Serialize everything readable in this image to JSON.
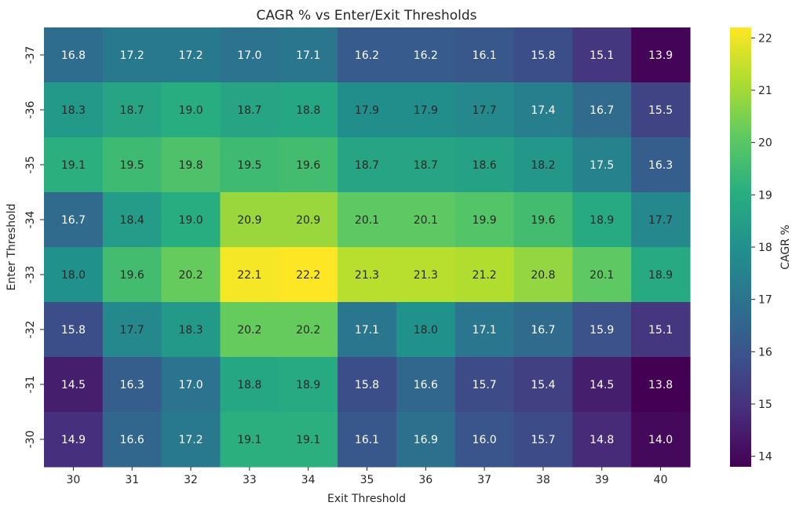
{
  "chart_data": {
    "type": "heatmap",
    "title": "CAGR % vs Enter/Exit Thresholds",
    "xlabel": "Exit Threshold",
    "ylabel": "Enter Threshold",
    "x_labels": [
      "30",
      "31",
      "32",
      "33",
      "34",
      "35",
      "36",
      "37",
      "38",
      "39",
      "40"
    ],
    "y_labels": [
      "-37",
      "-36",
      "-35",
      "-34",
      "-33",
      "-32",
      "-31",
      "-30"
    ],
    "values": [
      [
        16.8,
        17.2,
        17.2,
        17.0,
        17.1,
        16.2,
        16.2,
        16.1,
        15.8,
        15.1,
        13.9
      ],
      [
        18.3,
        18.7,
        19.0,
        18.7,
        18.8,
        17.9,
        17.9,
        17.7,
        17.4,
        16.7,
        15.5
      ],
      [
        19.1,
        19.5,
        19.8,
        19.5,
        19.6,
        18.7,
        18.7,
        18.6,
        18.2,
        17.5,
        16.3
      ],
      [
        16.7,
        18.4,
        19.0,
        20.9,
        20.9,
        20.1,
        20.1,
        19.9,
        19.6,
        18.9,
        17.7
      ],
      [
        18.0,
        19.6,
        20.2,
        22.1,
        22.2,
        21.3,
        21.3,
        21.2,
        20.8,
        20.1,
        18.9
      ],
      [
        15.8,
        17.7,
        18.3,
        20.2,
        20.2,
        17.1,
        18.0,
        17.1,
        16.7,
        15.9,
        15.1
      ],
      [
        14.5,
        16.3,
        17.0,
        18.8,
        18.9,
        15.8,
        16.6,
        15.7,
        15.4,
        14.5,
        13.8
      ],
      [
        14.9,
        16.6,
        17.2,
        19.1,
        19.1,
        16.1,
        16.9,
        16.0,
        15.7,
        14.8,
        14.0
      ]
    ],
    "colorbar": {
      "label": "CAGR %",
      "vmin": 13.8,
      "vmax": 22.2,
      "ticks": [
        14,
        15,
        16,
        17,
        18,
        19,
        20,
        21,
        22
      ],
      "colormap": "viridis"
    },
    "annotation_colors": {
      "light": "#ffffff",
      "dark": "#262626"
    }
  }
}
